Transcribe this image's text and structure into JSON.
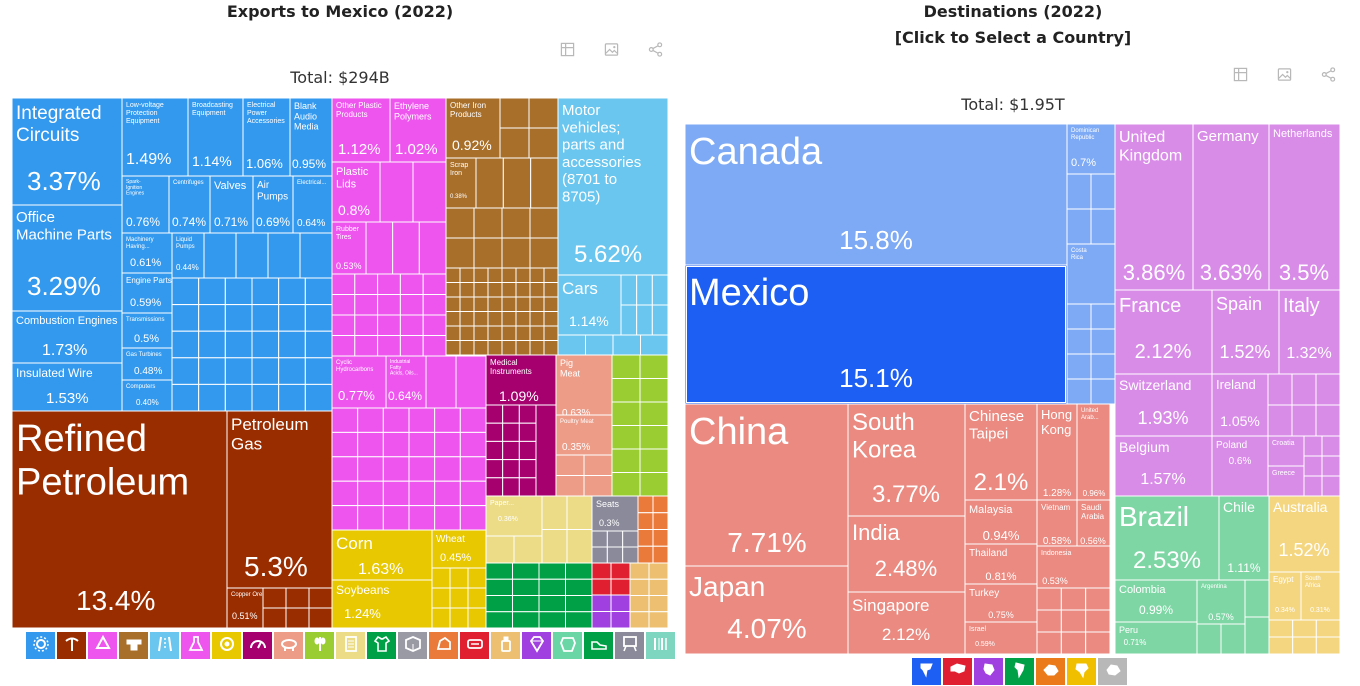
{
  "left": {
    "title": "Exports to Mexico (2022)",
    "total": "Total: $294B"
  },
  "right": {
    "title_line1": "Destinations (2022)",
    "title_line2": "[Click to Select a Country]",
    "total": "Total: $1.95T"
  },
  "toolbar_icons": [
    "table-icon",
    "image-icon",
    "share-icon"
  ],
  "colors": {
    "machinery": "#3399ee",
    "minerals": "#9a2d00",
    "chemicals": "#ee55ee",
    "metals": "#a86f2a",
    "transport": "#6ac6ee",
    "plastics": "#ee55ee",
    "instruments": "#a6006f",
    "animal": "#ed9c87",
    "vegetable": "#9acd32",
    "foodstuffs": "#e8c800",
    "textiles": "#00a046",
    "stone": "#c6b0a4",
    "miscellaneous": "#8a8a9a",
    "paper": "#ecdc87",
    "north_america": "#7eaaf5",
    "mexico_selected": "#1c5ff2",
    "asia": "#ea8a80",
    "europe": "#d98be8",
    "south_america": "#7fd6a5",
    "oceania": "#f5d680"
  },
  "chart_data": [
    {
      "type": "treemap",
      "title": "Exports to Mexico (2022)",
      "total": "Total: $294B",
      "nodes": [
        {
          "name": "Integrated Circuits",
          "value_label": "3.37%",
          "value": 3.37,
          "sector": "machinery"
        },
        {
          "name": "Office Machine Parts",
          "value_label": "3.29%",
          "value": 3.29,
          "sector": "machinery"
        },
        {
          "name": "Combustion Engines",
          "value_label": "1.73%",
          "value": 1.73,
          "sector": "machinery"
        },
        {
          "name": "Insulated Wire",
          "value_label": "1.53%",
          "value": 1.53,
          "sector": "machinery"
        },
        {
          "name": "Low-voltage Protection Equipment",
          "value_label": "1.49%",
          "value": 1.49,
          "sector": "machinery"
        },
        {
          "name": "Broadcasting Equipment",
          "value_label": "1.14%",
          "value": 1.14,
          "sector": "machinery"
        },
        {
          "name": "Electrical Power Accessories",
          "value_label": "1.06%",
          "value": 1.06,
          "sector": "machinery"
        },
        {
          "name": "Blank Audio Media",
          "value_label": "0.95%",
          "value": 0.95,
          "sector": "machinery"
        },
        {
          "name": "Spark-Ignition Engines",
          "value_label": "0.76%",
          "value": 0.76,
          "sector": "machinery"
        },
        {
          "name": "Centrifuges",
          "value_label": "0.74%",
          "value": 0.74,
          "sector": "machinery"
        },
        {
          "name": "Valves",
          "value_label": "0.71%",
          "value": 0.71,
          "sector": "machinery"
        },
        {
          "name": "Air Pumps",
          "value_label": "0.69%",
          "value": 0.69,
          "sector": "machinery"
        },
        {
          "name": "Electrical...",
          "value_label": "0.64%",
          "value": 0.64,
          "sector": "machinery"
        },
        {
          "name": "Machinery Having...",
          "value_label": "0.61%",
          "value": 0.61,
          "sector": "machinery"
        },
        {
          "name": "Engine Parts",
          "value_label": "0.59%",
          "value": 0.59,
          "sector": "machinery"
        },
        {
          "name": "Transmissions",
          "value_label": "0.5%",
          "value": 0.5,
          "sector": "machinery"
        },
        {
          "name": "Gas Turbines",
          "value_label": "0.48%",
          "value": 0.48,
          "sector": "machinery"
        },
        {
          "name": "Computers",
          "value_label": "0.40%",
          "value": 0.4,
          "sector": "machinery"
        },
        {
          "name": "Liquid Pumps",
          "value_label": "0.44%",
          "value": 0.44,
          "sector": "machinery"
        },
        {
          "name": "Refined Petroleum",
          "value_label": "13.4%",
          "value": 13.4,
          "sector": "minerals"
        },
        {
          "name": "Petroleum Gas",
          "value_label": "5.3%",
          "value": 5.3,
          "sector": "minerals"
        },
        {
          "name": "Copper Ore",
          "value_label": "0.51%",
          "value": 0.51,
          "sector": "minerals"
        },
        {
          "name": "Other Plastic Products",
          "value_label": "1.12%",
          "value": 1.12,
          "sector": "plastics"
        },
        {
          "name": "Ethylene Polymers",
          "value_label": "1.02%",
          "value": 1.02,
          "sector": "plastics"
        },
        {
          "name": "Plastic Lids",
          "value_label": "0.8%",
          "value": 0.8,
          "sector": "plastics"
        },
        {
          "name": "Rubber Tires",
          "value_label": "0.53%",
          "value": 0.53,
          "sector": "plastics"
        },
        {
          "name": "Other Iron Products",
          "value_label": "0.92%",
          "value": 0.92,
          "sector": "metals"
        },
        {
          "name": "Scrap Iron",
          "value_label": "0.38%",
          "value": 0.38,
          "sector": "metals"
        },
        {
          "name": "Motor vehicles; parts and accessories (8701 to 8705)",
          "value_label": "5.62%",
          "value": 5.62,
          "sector": "transport"
        },
        {
          "name": "Cars",
          "value_label": "1.14%",
          "value": 1.14,
          "sector": "transport"
        },
        {
          "name": "Cyclic Hydrocarbons",
          "value_label": "0.77%",
          "value": 0.77,
          "sector": "chemicals"
        },
        {
          "name": "Industrial Fatty Acids, Oils...",
          "value_label": "0.64%",
          "value": 0.64,
          "sector": "chemicals"
        },
        {
          "name": "Medical Instruments",
          "value_label": "1.09%",
          "value": 1.09,
          "sector": "instruments"
        },
        {
          "name": "Pig Meat",
          "value_label": "0.63%",
          "value": 0.63,
          "sector": "animal"
        },
        {
          "name": "Poultry Meat",
          "value_label": "0.35%",
          "value": 0.35,
          "sector": "animal"
        },
        {
          "name": "Corn",
          "value_label": "1.63%",
          "value": 1.63,
          "sector": "vegetable"
        },
        {
          "name": "Soybeans",
          "value_label": "1.24%",
          "value": 1.24,
          "sector": "vegetable"
        },
        {
          "name": "Wheat",
          "value_label": "0.45%",
          "value": 0.45,
          "sector": "vegetable"
        },
        {
          "name": "Paper...",
          "value_label": "0.36%",
          "value": 0.36,
          "sector": "paper"
        },
        {
          "name": "Seats",
          "value_label": "0.3%",
          "value": 0.3,
          "sector": "miscellaneous"
        }
      ]
    },
    {
      "type": "treemap",
      "title": "Destinations (2022) [Click to Select a Country]",
      "total": "Total: $1.95T",
      "nodes": [
        {
          "name": "Canada",
          "value_label": "15.8%",
          "value": 15.8,
          "region": "north_america"
        },
        {
          "name": "Mexico",
          "value_label": "15.1%",
          "value": 15.1,
          "region": "north_america",
          "selected": true
        },
        {
          "name": "Dominican Republic",
          "value_label": "0.7%",
          "value": 0.7,
          "region": "north_america"
        },
        {
          "name": "Costa Rica",
          "value_label": "",
          "value": 0.3,
          "region": "north_america"
        },
        {
          "name": "China",
          "value_label": "7.71%",
          "value": 7.71,
          "region": "asia"
        },
        {
          "name": "Japan",
          "value_label": "4.07%",
          "value": 4.07,
          "region": "asia"
        },
        {
          "name": "South Korea",
          "value_label": "3.77%",
          "value": 3.77,
          "region": "asia"
        },
        {
          "name": "India",
          "value_label": "2.48%",
          "value": 2.48,
          "region": "asia"
        },
        {
          "name": "Singapore",
          "value_label": "2.12%",
          "value": 2.12,
          "region": "asia"
        },
        {
          "name": "Chinese Taipei",
          "value_label": "2.1%",
          "value": 2.1,
          "region": "asia"
        },
        {
          "name": "Hong Kong",
          "value_label": "1.28%",
          "value": 1.28,
          "region": "asia"
        },
        {
          "name": "United Arab...",
          "value_label": "0.96%",
          "value": 0.96,
          "region": "asia"
        },
        {
          "name": "Malaysia",
          "value_label": "0.94%",
          "value": 0.94,
          "region": "asia"
        },
        {
          "name": "Thailand",
          "value_label": "0.81%",
          "value": 0.81,
          "region": "asia"
        },
        {
          "name": "Turkey",
          "value_label": "0.75%",
          "value": 0.75,
          "region": "asia"
        },
        {
          "name": "Israel",
          "value_label": "0.59%",
          "value": 0.59,
          "region": "asia"
        },
        {
          "name": "Vietnam",
          "value_label": "0.58%",
          "value": 0.58,
          "region": "asia"
        },
        {
          "name": "Saudi Arabia",
          "value_label": "0.56%",
          "value": 0.56,
          "region": "asia"
        },
        {
          "name": "Indonesia",
          "value_label": "0.53%",
          "value": 0.53,
          "region": "asia"
        },
        {
          "name": "United Kingdom",
          "value_label": "3.86%",
          "value": 3.86,
          "region": "europe"
        },
        {
          "name": "Germany",
          "value_label": "3.63%",
          "value": 3.63,
          "region": "europe"
        },
        {
          "name": "Netherlands",
          "value_label": "3.5%",
          "value": 3.5,
          "region": "europe"
        },
        {
          "name": "France",
          "value_label": "2.12%",
          "value": 2.12,
          "region": "europe"
        },
        {
          "name": "Spain",
          "value_label": "1.52%",
          "value": 1.52,
          "region": "europe"
        },
        {
          "name": "Italy",
          "value_label": "1.32%",
          "value": 1.32,
          "region": "europe"
        },
        {
          "name": "Switzerland",
          "value_label": "1.93%",
          "value": 1.93,
          "region": "europe"
        },
        {
          "name": "Ireland",
          "value_label": "1.05%",
          "value": 1.05,
          "region": "europe"
        },
        {
          "name": "Belgium",
          "value_label": "1.57%",
          "value": 1.57,
          "region": "europe"
        },
        {
          "name": "Poland",
          "value_label": "0.6%",
          "value": 0.6,
          "region": "europe"
        },
        {
          "name": "Croatia",
          "value_label": "",
          "value": 0.3,
          "region": "europe"
        },
        {
          "name": "Greece",
          "value_label": "",
          "value": 0.3,
          "region": "europe"
        },
        {
          "name": "Brazil",
          "value_label": "2.53%",
          "value": 2.53,
          "region": "south_america"
        },
        {
          "name": "Chile",
          "value_label": "1.11%",
          "value": 1.11,
          "region": "south_america"
        },
        {
          "name": "Colombia",
          "value_label": "0.99%",
          "value": 0.99,
          "region": "south_america"
        },
        {
          "name": "Argentina",
          "value_label": "0.57%",
          "value": 0.57,
          "region": "south_america"
        },
        {
          "name": "Peru",
          "value_label": "0.71%",
          "value": 0.71,
          "region": "south_america"
        },
        {
          "name": "Australia",
          "value_label": "1.52%",
          "value": 1.52,
          "region": "oceania"
        },
        {
          "name": "Egypt",
          "value_label": "0.34%",
          "value": 0.34,
          "region": "africa"
        },
        {
          "name": "South Africa",
          "value_label": "0.31%",
          "value": 0.31,
          "region": "africa"
        }
      ]
    }
  ],
  "left_legend": [
    {
      "icon": "gear-icon",
      "color": "#3399ee"
    },
    {
      "icon": "pickaxe-icon",
      "color": "#9a2d00"
    },
    {
      "icon": "recycle-icon",
      "color": "#ee55ee"
    },
    {
      "icon": "anvil-icon",
      "color": "#a86f2a"
    },
    {
      "icon": "road-icon",
      "color": "#6ac6ee"
    },
    {
      "icon": "flask-icon",
      "color": "#ee55ee"
    },
    {
      "icon": "cheese-icon",
      "color": "#e8c800"
    },
    {
      "icon": "gauge-icon",
      "color": "#a6006f"
    },
    {
      "icon": "pig-icon",
      "color": "#ed9c87"
    },
    {
      "icon": "wheat-icon",
      "color": "#9acd32"
    },
    {
      "icon": "document-icon",
      "color": "#ecdc87"
    },
    {
      "icon": "shirt-icon",
      "color": "#00a046"
    },
    {
      "icon": "box-icon",
      "color": "#9a9aa5"
    },
    {
      "icon": "rock-icon",
      "color": "#ea7a3a"
    },
    {
      "icon": "ticket-icon",
      "color": "#e02030"
    },
    {
      "icon": "bottle-icon",
      "color": "#ecc070"
    },
    {
      "icon": "gem-icon",
      "color": "#a040e0"
    },
    {
      "icon": "hide-icon",
      "color": "#6ad6a6"
    },
    {
      "icon": "shoe-icon",
      "color": "#00a046"
    },
    {
      "icon": "easel-icon",
      "color": "#8a8a9a"
    },
    {
      "icon": "barcode-icon",
      "color": "#7fd6c0"
    }
  ],
  "right_legend": [
    {
      "icon": "north-america-icon",
      "color": "#1c5ff2"
    },
    {
      "icon": "asia-icon",
      "color": "#e02030"
    },
    {
      "icon": "europe-icon",
      "color": "#a040e0"
    },
    {
      "icon": "south-america-icon",
      "color": "#00a046"
    },
    {
      "icon": "oceania-icon",
      "color": "#ea7a1a"
    },
    {
      "icon": "africa-icon",
      "color": "#f0c000"
    },
    {
      "icon": "antarctica-icon",
      "color": "#b8b8b8"
    }
  ]
}
